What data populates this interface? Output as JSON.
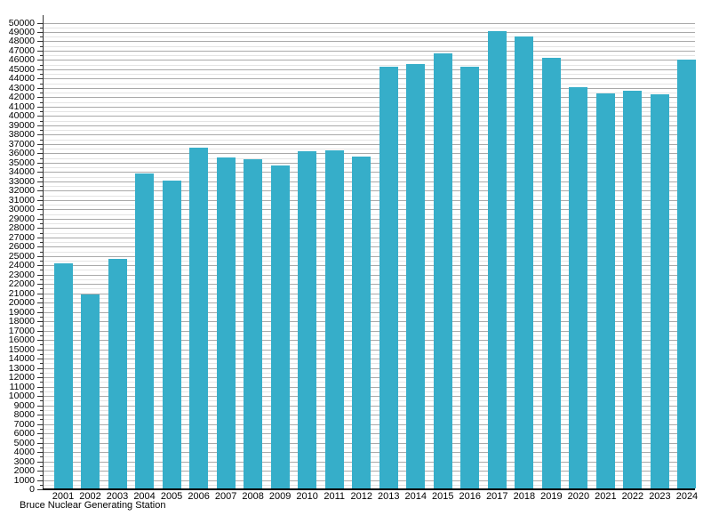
{
  "chart_data": {
    "type": "bar",
    "title": "",
    "caption": "Bruce Nuclear Generating Station",
    "xlabel": "",
    "ylabel": "",
    "categories": [
      "2001",
      "2002",
      "2003",
      "2004",
      "2005",
      "2006",
      "2007",
      "2008",
      "2009",
      "2010",
      "2011",
      "2012",
      "2013",
      "2014",
      "2015",
      "2016",
      "2017",
      "2018",
      "2019",
      "2020",
      "2021",
      "2022",
      "2023",
      "2024"
    ],
    "values": [
      24200,
      20900,
      24700,
      33800,
      33100,
      36600,
      35600,
      35400,
      34700,
      36200,
      36300,
      35700,
      45250,
      45600,
      46700,
      45300,
      49100,
      48500,
      46200,
      43100,
      42400,
      42700,
      42300,
      46000
    ],
    "ylim": [
      0,
      50000
    ],
    "y_major_step": 1000,
    "y_minor_step": 500,
    "grid": "on",
    "legend": "none",
    "bar_color": "#36aec9",
    "major_grid_color": "#a9a9a9",
    "minor_grid_color": "#e4e4e4",
    "axis_color": "#000000",
    "text_color": "#000000"
  }
}
